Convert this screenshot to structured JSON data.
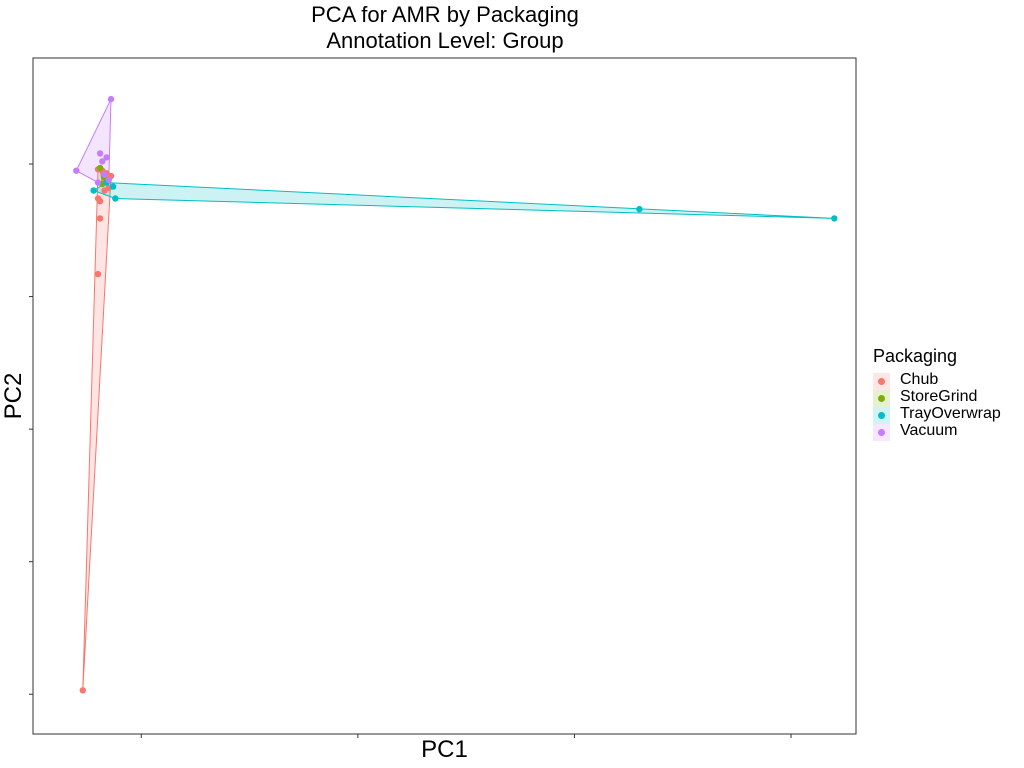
{
  "chart_data": {
    "type": "scatter",
    "title": "PCA for AMR by Packaging",
    "subtitle": "Annotation Level: Group",
    "xlabel": "PC1",
    "ylabel": "PC2",
    "xlim": [
      -0.5,
      3.3
    ],
    "ylim": [
      -2.8,
      2.3
    ],
    "x_ticks": [
      0,
      1,
      2,
      3
    ],
    "y_ticks": [
      -2.5,
      -1.5,
      -0.5,
      0.5,
      1.5
    ],
    "grid": false,
    "hulls": true,
    "legend": {
      "title": "Packaging",
      "position": "right"
    },
    "series": [
      {
        "name": "Chub",
        "color": "#F8766D",
        "points": [
          [
            -0.27,
            -2.47
          ],
          [
            -0.2,
            0.67
          ],
          [
            -0.19,
            1.09
          ],
          [
            -0.19,
            1.22
          ],
          [
            -0.2,
            1.24
          ],
          [
            -0.17,
            1.3
          ],
          [
            -0.15,
            1.32
          ],
          [
            -0.14,
            1.41
          ],
          [
            -0.16,
            1.43
          ],
          [
            -0.18,
            1.45
          ],
          [
            -0.2,
            1.46
          ]
        ]
      },
      {
        "name": "StoreGrind",
        "color": "#7CAE00",
        "points": [
          [
            -0.19,
            1.47
          ],
          [
            -0.17,
            1.4
          ],
          [
            -0.18,
            1.35
          ],
          [
            -0.16,
            1.37
          ]
        ]
      },
      {
        "name": "TrayOverwrap",
        "color": "#00BFC4",
        "points": [
          [
            -0.22,
            1.3
          ],
          [
            -0.13,
            1.33
          ],
          [
            -0.12,
            1.24
          ],
          [
            2.3,
            1.16
          ],
          [
            3.2,
            1.09
          ],
          [
            -0.16,
            1.36
          ]
        ]
      },
      {
        "name": "Vacuum",
        "color": "#C77CFF",
        "points": [
          [
            -0.3,
            1.45
          ],
          [
            -0.14,
            1.99
          ],
          [
            -0.2,
            1.36
          ],
          [
            -0.19,
            1.58
          ],
          [
            -0.16,
            1.55
          ],
          [
            -0.18,
            1.52
          ],
          [
            -0.17,
            1.42
          ],
          [
            -0.15,
            1.38
          ]
        ]
      }
    ]
  }
}
